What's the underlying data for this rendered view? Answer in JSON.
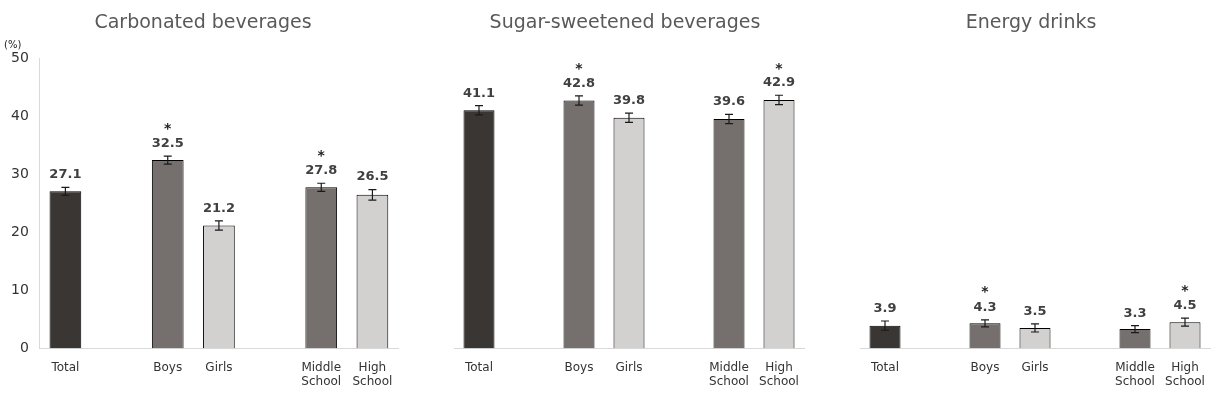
{
  "chart_data": [
    {
      "type": "bar",
      "title": "Carbonated beverages",
      "ylabel": "(%)",
      "categories": [
        "Total",
        null,
        "Boys",
        "Girls",
        null,
        "Middle School",
        "High School"
      ],
      "values": [
        27.1,
        null,
        32.5,
        21.2,
        null,
        27.8,
        26.5
      ],
      "colors": [
        "#3a3633",
        "#75706d",
        "#75706d",
        "#d3d0d0",
        "#d3d0d0",
        "#75706d",
        "#d3d0d0"
      ],
      "errors": [
        0.7,
        null,
        0.7,
        0.8,
        null,
        0.7,
        0.9
      ],
      "ylim": [
        0,
        50
      ],
      "yticks": [
        0,
        10,
        20,
        30,
        40,
        50
      ],
      "data_labels": true,
      "grid": false,
      "legend": false,
      "annotations": [
        {
          "text": "*",
          "x": "Boys",
          "y": 32.5
        },
        {
          "text": "*",
          "x": "Middle School",
          "y": 27.8
        }
      ]
    },
    {
      "type": "bar",
      "title": "Sugar-sweetened beverages",
      "categories": [
        "Total",
        null,
        "Boys",
        "Girls",
        null,
        "Middle School",
        "High School"
      ],
      "values": [
        41.1,
        null,
        42.8,
        39.8,
        null,
        39.6,
        42.9
      ],
      "colors": [
        "#3a3633",
        "#75706d",
        "#75706d",
        "#d3d0d0",
        "#d3d0d0",
        "#75706d",
        "#d3d0d0"
      ],
      "errors": [
        0.8,
        null,
        0.8,
        0.8,
        null,
        0.8,
        0.8
      ],
      "ylim": [
        0,
        50
      ],
      "tick_labels": "x",
      "data_labels": true,
      "grid": false,
      "legend": false,
      "annotations": [
        {
          "text": "*",
          "x": "Boys",
          "y": 42.8
        },
        {
          "text": "*",
          "x": "High School",
          "y": 42.9
        }
      ]
    },
    {
      "type": "bar",
      "title": "Energy drinks",
      "categories": [
        "Total",
        null,
        "Boys",
        "Girls",
        null,
        "Middle School",
        "High School"
      ],
      "values": [
        3.9,
        null,
        4.3,
        3.5,
        null,
        3.3,
        4.5
      ],
      "colors": [
        "#3a3633",
        "#75706d",
        "#75706d",
        "#d3d0d0",
        "#d3d0d0",
        "#75706d",
        "#d3d0d0"
      ],
      "errors": [
        0.8,
        null,
        0.6,
        0.7,
        null,
        0.6,
        0.7
      ],
      "ylim": [
        0,
        50
      ],
      "tick_labels": "x",
      "data_labels": true,
      "grid": false,
      "legend": false,
      "annotations": [
        {
          "text": "*",
          "x": "Boys",
          "y": 4.3
        },
        {
          "text": "*",
          "x": "High School",
          "y": 4.5
        }
      ]
    }
  ]
}
